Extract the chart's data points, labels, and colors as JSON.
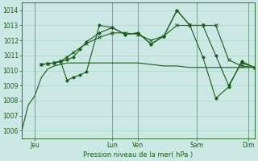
{
  "xlabel": "Pression niveau de la mer( hPa )",
  "ylim": [
    1005.5,
    1014.5
  ],
  "yticks": [
    1006,
    1007,
    1008,
    1009,
    1010,
    1011,
    1012,
    1013,
    1014
  ],
  "xlim": [
    0,
    18
  ],
  "bg_color": "#cce8e4",
  "grid_color": "#aad4ce",
  "dark": "#1a5c1a",
  "vline_color": "#336633",
  "day_ticks": [
    1.0,
    7.0,
    9.0,
    13.5,
    17.5
  ],
  "day_labels": [
    "Jeu",
    "Lun",
    "Ven",
    "Sam",
    "Dim"
  ],
  "vlines": [
    1.0,
    7.0,
    9.0,
    13.5,
    17.5
  ],
  "line1_x": [
    0,
    0.5,
    1.0,
    1.5,
    2.0,
    2.5,
    3.0,
    3.5,
    4.0,
    5.0,
    6.0,
    7.0,
    8.0,
    9.0,
    10.0,
    11.0,
    12.0,
    13.0,
    14.0,
    15.0,
    16.0,
    17.0,
    18.0
  ],
  "line1_y": [
    1006.0,
    1007.7,
    1008.3,
    1009.5,
    1010.1,
    1010.3,
    1010.4,
    1010.5,
    1010.5,
    1010.5,
    1010.5,
    1010.5,
    1010.5,
    1010.5,
    1010.4,
    1010.3,
    1010.3,
    1010.2,
    1010.2,
    1010.2,
    1010.2,
    1010.2,
    1010.2
  ],
  "line2_x": [
    1.5,
    2.0,
    2.5,
    3.0,
    3.5,
    4.0,
    5.0,
    6.0,
    7.0,
    8.0,
    9.0,
    10.0,
    11.0,
    12.0,
    13.0,
    14.0,
    15.0,
    16.0,
    17.0,
    18.0
  ],
  "line2_y": [
    1010.4,
    1010.45,
    1010.5,
    1010.6,
    1010.9,
    1011.2,
    1011.8,
    1012.2,
    1012.5,
    1012.5,
    1012.4,
    1012.0,
    1012.3,
    1013.0,
    1013.0,
    1013.0,
    1013.0,
    1010.7,
    1010.3,
    1010.2
  ],
  "line3_x": [
    1.5,
    2.0,
    2.5,
    3.0,
    3.5,
    4.0,
    4.5,
    5.0,
    6.0,
    7.0,
    8.0,
    9.0,
    10.0,
    11.0,
    12.0,
    13.0,
    14.0,
    15.0,
    16.0,
    17.0,
    18.0
  ],
  "line3_y": [
    1010.4,
    1010.45,
    1010.5,
    1010.6,
    1010.7,
    1010.9,
    1011.4,
    1011.9,
    1012.5,
    1012.85,
    1012.4,
    1012.5,
    1011.75,
    1012.3,
    1014.0,
    1013.0,
    1013.0,
    1011.0,
    1009.0,
    1010.5,
    1010.2
  ],
  "line4_x": [
    2.5,
    3.0,
    3.5,
    4.0,
    4.5,
    5.0,
    6.0,
    7.0,
    8.0,
    9.0,
    10.0,
    11.0,
    12.0,
    13.0,
    14.0,
    15.0,
    16.0,
    17.0,
    18.0
  ],
  "line4_y": [
    1010.5,
    1010.6,
    1009.35,
    1009.55,
    1009.7,
    1009.9,
    1013.0,
    1012.85,
    1012.4,
    1012.5,
    1011.75,
    1012.3,
    1014.0,
    1013.0,
    1010.9,
    1008.15,
    1008.9,
    1010.6,
    1010.2
  ]
}
